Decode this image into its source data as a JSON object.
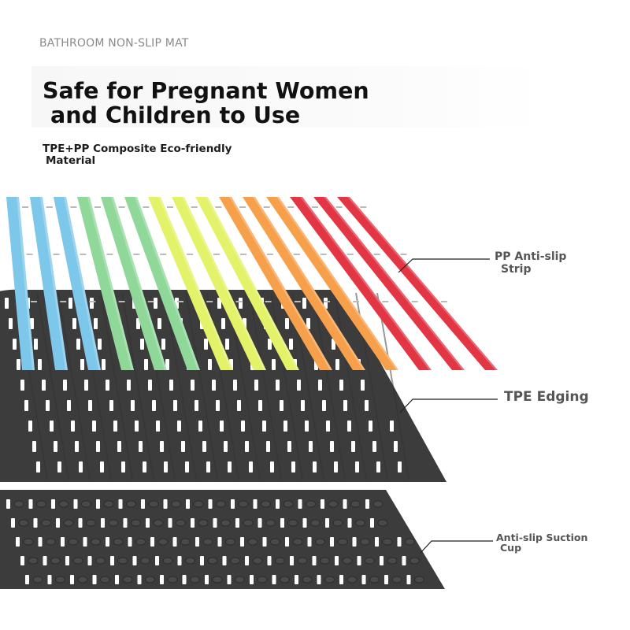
{
  "header": {
    "category": "BATHROOM NON-SLIP MAT",
    "headline": [
      "Safe for Pregnant Women",
      "and Children to Use"
    ],
    "material": [
      "TPE+PP Composite Eco-friendly",
      "Material"
    ]
  },
  "callouts": {
    "pp_strip": [
      "PP Anti-slip",
      "Strip"
    ],
    "tpe_edging": "TPE Edging",
    "suction_cup": [
      "Anti-slip Suction",
      "Cup"
    ]
  },
  "colors": {
    "tpe_layer": "#3c3c3c",
    "slot": "#ffffff",
    "cup": "#4a4a4a",
    "strip_palette": [
      "#7cc7ea",
      "#8fd89a",
      "#e4f26a",
      "#f7a04c",
      "#e23644"
    ]
  },
  "strips": [
    {
      "color_group": "blue"
    },
    {
      "color_group": "blue"
    },
    {
      "color_group": "blue"
    },
    {
      "color_group": "green"
    },
    {
      "color_group": "green"
    },
    {
      "color_group": "green"
    },
    {
      "color_group": "yellow"
    },
    {
      "color_group": "yellow"
    },
    {
      "color_group": "yellow"
    },
    {
      "color_group": "orange"
    },
    {
      "color_group": "orange"
    },
    {
      "color_group": "orange"
    },
    {
      "color_group": "red"
    },
    {
      "color_group": "red"
    },
    {
      "color_group": "red"
    }
  ]
}
